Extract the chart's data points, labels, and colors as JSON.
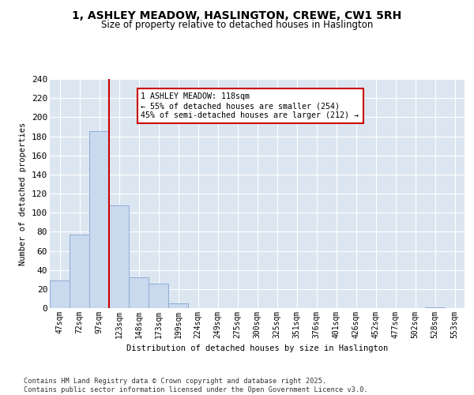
{
  "title_line1": "1, ASHLEY MEADOW, HASLINGTON, CREWE, CW1 5RH",
  "title_line2": "Size of property relative to detached houses in Haslington",
  "xlabel": "Distribution of detached houses by size in Haslington",
  "ylabel": "Number of detached properties",
  "categories": [
    "47sqm",
    "72sqm",
    "97sqm",
    "123sqm",
    "148sqm",
    "173sqm",
    "199sqm",
    "224sqm",
    "249sqm",
    "275sqm",
    "300sqm",
    "325sqm",
    "351sqm",
    "376sqm",
    "401sqm",
    "426sqm",
    "452sqm",
    "477sqm",
    "502sqm",
    "528sqm",
    "553sqm"
  ],
  "values": [
    29,
    77,
    185,
    108,
    32,
    26,
    5,
    0,
    0,
    0,
    0,
    0,
    0,
    0,
    0,
    0,
    0,
    0,
    0,
    1,
    0
  ],
  "bar_color": "#c9d9ee",
  "bar_edge_color": "#8eadd4",
  "background_color": "#dce6f1",
  "grid_color": "#ffffff",
  "vline_color": "#cc0000",
  "vline_index": 2.5,
  "annotation_text": "1 ASHLEY MEADOW: 118sqm\n← 55% of detached houses are smaller (254)\n45% of semi-detached houses are larger (212) →",
  "annotation_box_color": "#ffffff",
  "annotation_box_edge_color": "#cc0000",
  "footer_text": "Contains HM Land Registry data © Crown copyright and database right 2025.\nContains public sector information licensed under the Open Government Licence v3.0.",
  "ylim": [
    0,
    240
  ],
  "yticks": [
    0,
    20,
    40,
    60,
    80,
    100,
    120,
    140,
    160,
    180,
    200,
    220,
    240
  ],
  "fig_bg": "#ffffff"
}
